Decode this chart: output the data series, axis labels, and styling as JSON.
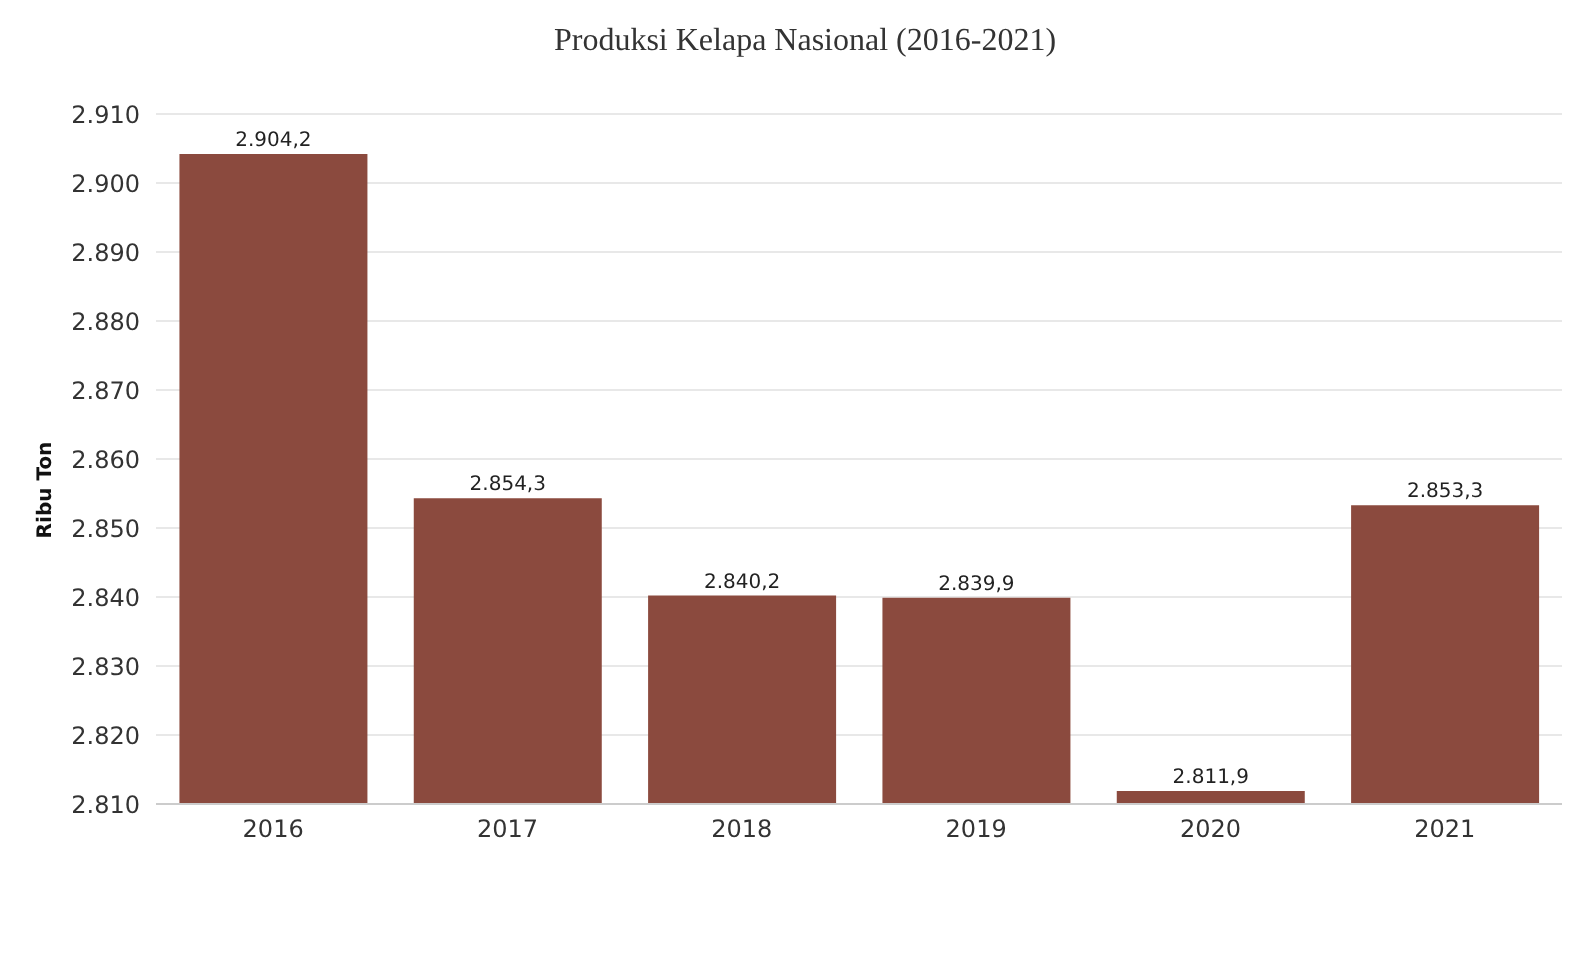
{
  "chart_data": {
    "type": "bar",
    "title": "Produksi Kelapa Nasional (2016-2021)",
    "ylabel": "Ribu Ton",
    "categories": [
      "2016",
      "2017",
      "2018",
      "2019",
      "2020",
      "2021"
    ],
    "values": [
      2904.2,
      2854.3,
      2840.2,
      2839.9,
      2811.9,
      2853.3
    ],
    "value_labels": [
      "2.904,2",
      "2.854,3",
      "2.840,2",
      "2.839,9",
      "2.811,9",
      "2.853,3"
    ],
    "color": "#8b4a3e",
    "ylim": [
      2810,
      2910
    ],
    "yticks": [
      {
        "value": 2810,
        "label": "2.810"
      },
      {
        "value": 2820,
        "label": "2.820"
      },
      {
        "value": 2830,
        "label": "2.830"
      },
      {
        "value": 2840,
        "label": "2.840"
      },
      {
        "value": 2850,
        "label": "2.850"
      },
      {
        "value": 2860,
        "label": "2.860"
      },
      {
        "value": 2870,
        "label": "2.870"
      },
      {
        "value": 2880,
        "label": "2.880"
      },
      {
        "value": 2890,
        "label": "2.890"
      },
      {
        "value": 2900,
        "label": "2.900"
      },
      {
        "value": 2910,
        "label": "2.910"
      }
    ],
    "grid": "y"
  }
}
